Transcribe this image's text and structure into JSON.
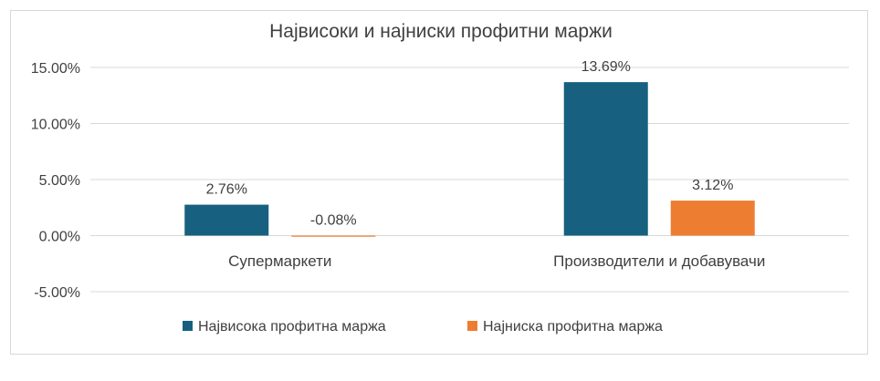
{
  "chart_data": {
    "type": "bar",
    "title": "Највисоки и најниски профитни маржи",
    "categories": [
      "Супермаркети",
      "Производители и добавувачи"
    ],
    "series": [
      {
        "name": "Највисока профитна маржа",
        "values": [
          2.76,
          13.69
        ],
        "labels": [
          "2.76%",
          "13.69%"
        ],
        "color": "#17607f"
      },
      {
        "name": "Најниска профитна маржа",
        "values": [
          -0.08,
          3.12
        ],
        "labels": [
          "-0.08%",
          "3.12%"
        ],
        "color": "#ed7d31"
      }
    ],
    "y_ticks": [
      15,
      10,
      5,
      0,
      -5
    ],
    "y_tick_labels": [
      "15.00%",
      "10.00%",
      "5.00%",
      "0.00%",
      "-5.00%"
    ],
    "ylim": [
      -5,
      15
    ],
    "grid": true,
    "gridline_color": "#d9d9d9",
    "legend_position": "bottom"
  }
}
